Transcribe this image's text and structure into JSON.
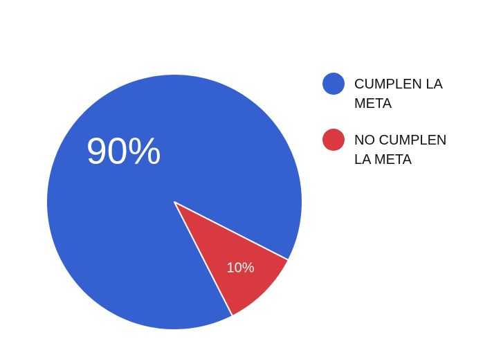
{
  "chart_data": {
    "type": "pie",
    "slices": [
      {
        "name": "CUMPLEN LA META",
        "label_lines": [
          "CUMPLEN LA",
          "META"
        ],
        "value": 90,
        "label": "90%",
        "color": "#3461CF"
      },
      {
        "name": "NO CUMPLEN LA META",
        "label_lines": [
          "NO CUMPLEN",
          "LA META"
        ],
        "value": 10,
        "label": "10%",
        "color": "#D93A3F"
      }
    ],
    "legend_position": "right",
    "start_angle_deg": 153,
    "direction": "clockwise"
  }
}
